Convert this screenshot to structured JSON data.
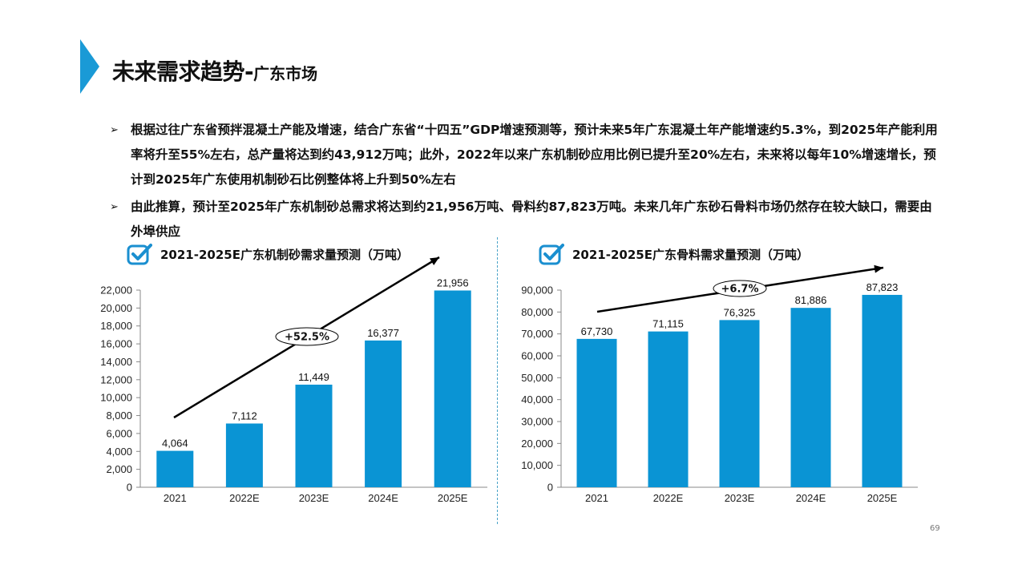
{
  "header": {
    "title": "未来需求趋势-",
    "subtitle": "广东市场"
  },
  "bullets": [
    {
      "marker": "➢",
      "text": "根据过往广东省预拌混凝土产能及增速，结合广东省“十四五”GDP增速预测等，预计未来5年广东混凝土年产能增速约5.3%，到2025年产能利用率将升至55%左右，总产量将达到约43,912万吨；此外，2022年以来广东机制砂应用比例已提升至20%左右，未来将以每年10%增速增长，预计到2025年广东使用机制砂石比例整体将上升到50%左右"
    },
    {
      "marker": "➢",
      "text": "由此推算，预计至2025年广东机制砂总需求将达到约21,956万吨、骨料约87,823万吨。未来几年广东砂石骨料市场仍然存在较大缺口，需要由外埠供应"
    }
  ],
  "colors": {
    "accent": "#1a9ad6",
    "bar": "#0a94d4",
    "icon": "#1a8fd0"
  },
  "page_number": "69",
  "chart_data": [
    {
      "type": "bar",
      "title": "2021-2025E广东机制砂需求量预测（万吨）",
      "categories": [
        "2021",
        "2022E",
        "2023E",
        "2024E",
        "2025E"
      ],
      "values": [
        4064,
        7112,
        11449,
        16377,
        21956
      ],
      "value_labels": [
        "4,064",
        "7,112",
        "11,449",
        "16,377",
        "21,956"
      ],
      "yticks": [
        0,
        2000,
        4000,
        6000,
        8000,
        10000,
        12000,
        14000,
        16000,
        18000,
        20000,
        22000
      ],
      "ytick_labels": [
        "0",
        "2,000",
        "4,000",
        "6,000",
        "8,000",
        "10,000",
        "12,000",
        "14,000",
        "16,000",
        "18,000",
        "20,000",
        "22,000"
      ],
      "ylim": [
        0,
        22000
      ],
      "growth_label": "+52.5%",
      "xlabel": "",
      "ylabel": ""
    },
    {
      "type": "bar",
      "title": "2021-2025E广东骨料需求量预测（万吨）",
      "categories": [
        "2021",
        "2022E",
        "2023E",
        "2024E",
        "2025E"
      ],
      "values": [
        67730,
        71115,
        76325,
        81886,
        87823
      ],
      "value_labels": [
        "67,730",
        "71,115",
        "76,325",
        "81,886",
        "87,823"
      ],
      "yticks": [
        0,
        10000,
        20000,
        30000,
        40000,
        50000,
        60000,
        70000,
        80000,
        90000
      ],
      "ytick_labels": [
        "0",
        "10,000",
        "20,000",
        "30,000",
        "40,000",
        "50,000",
        "60,000",
        "70,000",
        "80,000",
        "90,000"
      ],
      "ylim": [
        0,
        90000
      ],
      "growth_label": "+6.7%",
      "xlabel": "",
      "ylabel": ""
    }
  ]
}
